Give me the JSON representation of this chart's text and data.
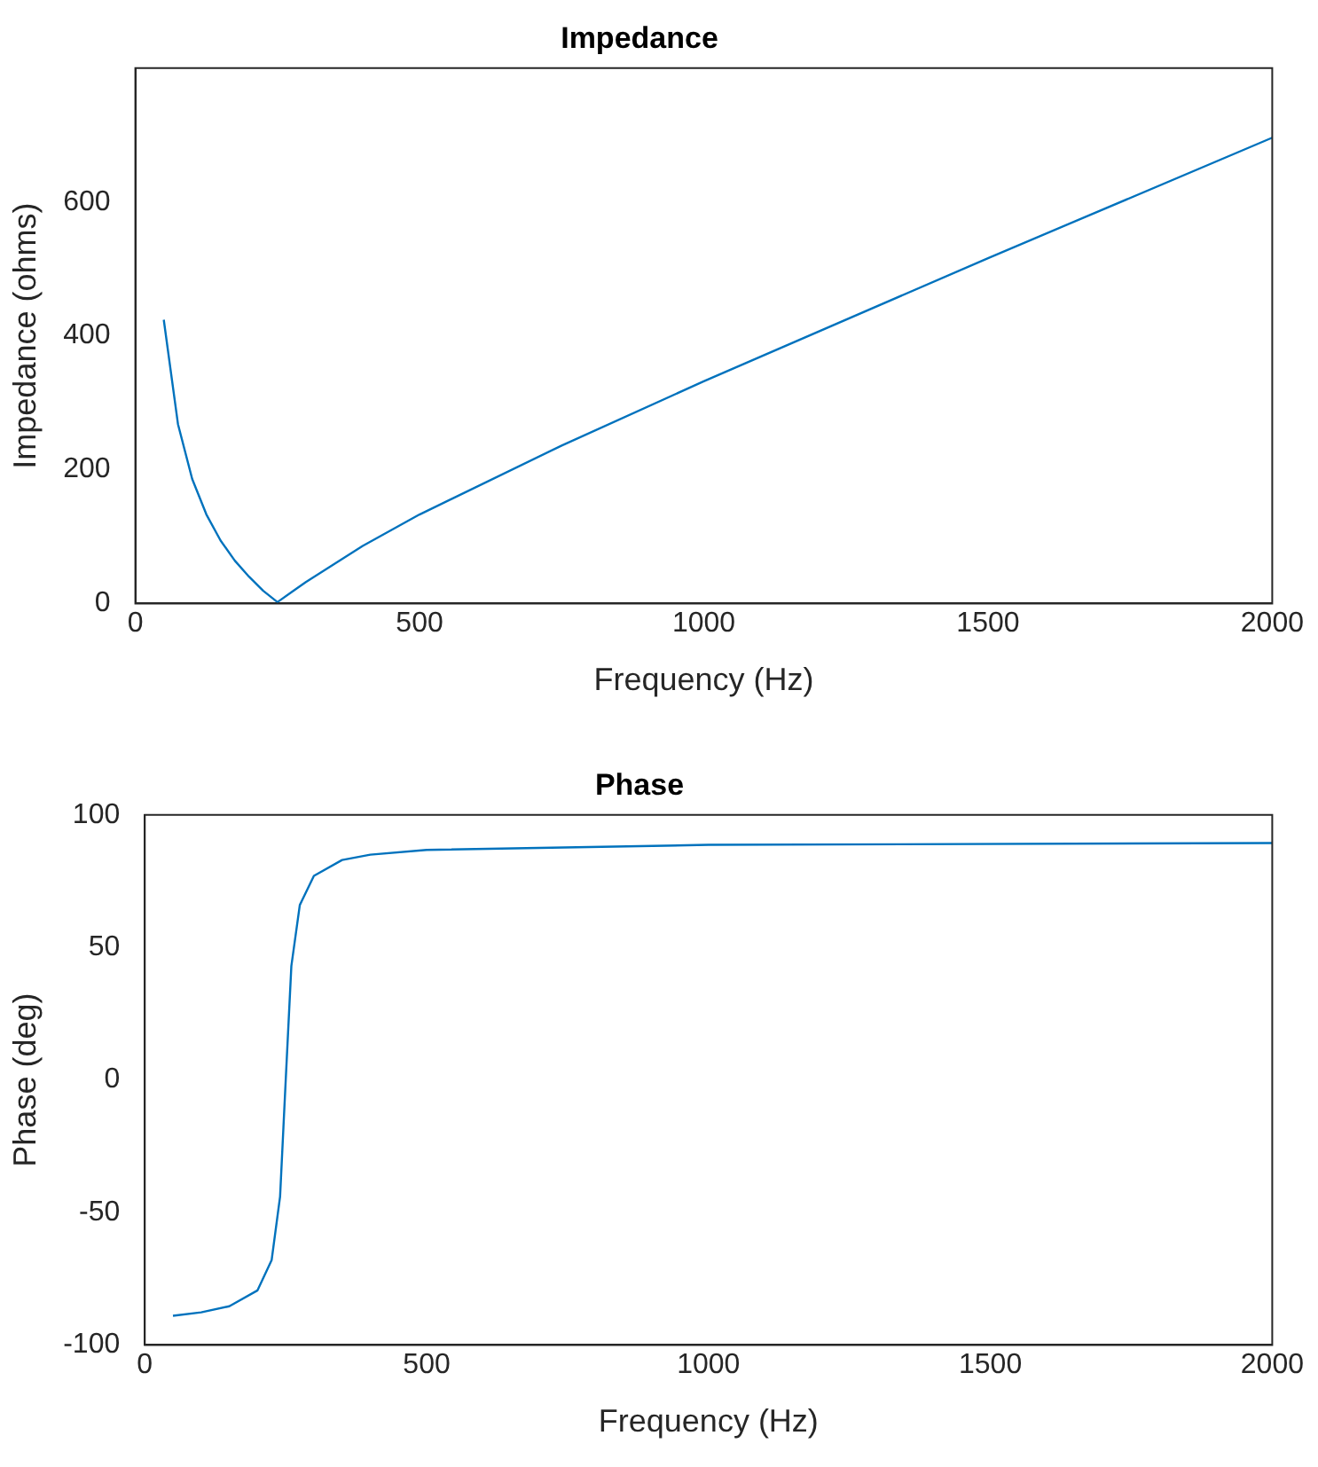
{
  "chart_data": [
    {
      "type": "line",
      "title": "Impedance",
      "xlabel": "Frequency (Hz)",
      "ylabel": "Impedance (ohms)",
      "xlim": [
        0,
        2000
      ],
      "xticks": [
        0,
        500,
        1000,
        1500,
        2000
      ],
      "ylim": [
        0,
        800
      ],
      "yticks": [
        0,
        200,
        400,
        600
      ],
      "grid": false,
      "legend": false,
      "marker": "none",
      "line_style": "solid",
      "x": [
        50,
        75,
        100,
        125,
        150,
        175,
        200,
        225,
        250,
        275,
        300,
        400,
        500,
        750,
        1000,
        1500,
        2000
      ],
      "series": [
        {
          "color": "#0072bd",
          "values": [
            424,
            268,
            186,
            133,
            94,
            64,
            40,
            19,
            2,
            17,
            32,
            86,
            133,
            236,
            332,
            516,
            696
          ]
        }
      ]
    },
    {
      "type": "line",
      "title": "Phase",
      "xlabel": "Frequency (Hz)",
      "ylabel": "Phase (deg)",
      "xlim": [
        0,
        2000
      ],
      "xticks": [
        0,
        500,
        1000,
        1500,
        2000
      ],
      "ylim": [
        -100,
        100
      ],
      "yticks": [
        -100,
        -50,
        0,
        50,
        100
      ],
      "grid": false,
      "legend": false,
      "marker": "none",
      "line_style": "solid",
      "x": [
        50,
        100,
        150,
        200,
        225,
        240,
        250,
        260,
        275,
        300,
        350,
        400,
        500,
        1000,
        2000
      ],
      "series": [
        {
          "color": "#0072bd",
          "values": [
            -89,
            -87.7,
            -85.4,
            -79.4,
            -68,
            -44,
            0,
            43,
            66,
            77,
            83,
            85,
            86.8,
            88.7,
            89.4
          ]
        }
      ]
    }
  ]
}
